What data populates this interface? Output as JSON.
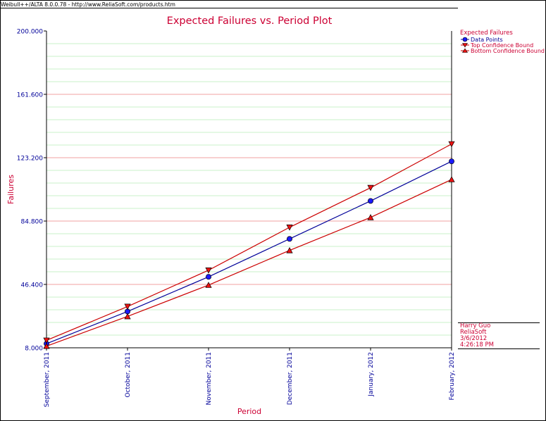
{
  "app_header": "Weibull++/ALTA 8.0.0.78 - http://www.ReliaSoft.com/products.htm",
  "colors": {
    "title": "#cc0033",
    "axis_text": "#000099",
    "data_line": "#000099",
    "bound_line": "#cc0000",
    "major_grid": "#f0a0a0",
    "minor_grid": "#c8f0c8"
  },
  "chart_data": {
    "type": "line",
    "title": "Expected Failures vs. Period Plot",
    "xlabel": "Period",
    "ylabel": "Failures",
    "categories": [
      "September, 2011",
      "October, 2011",
      "November, 2011",
      "December, 2011",
      "January, 2012",
      "February, 2012"
    ],
    "ylim": [
      8.0,
      200.0
    ],
    "y_ticks": [
      "8.000",
      "46.400",
      "84.800",
      "123.200",
      "161.600",
      "200.000"
    ],
    "y_minor_step": 7.68,
    "grid": true,
    "legend_title": "Expected Failures",
    "legend_position": "right",
    "series": [
      {
        "name": "Data Points",
        "values": [
          10.5,
          30,
          51,
          74,
          97,
          121
        ],
        "color": "#000099",
        "marker": "circle",
        "marker_fill": "#1a1aff"
      },
      {
        "name": "Top Confidence Bound",
        "values": [
          12.5,
          33,
          55,
          81,
          105,
          131.5
        ],
        "color": "#cc0000",
        "marker": "triangle-down",
        "marker_fill": "#ee1111"
      },
      {
        "name": "Bottom Confidence Bound",
        "values": [
          9,
          27,
          46,
          67,
          87,
          110
        ],
        "color": "#cc0000",
        "marker": "triangle-up",
        "marker_fill": "#ee1111"
      }
    ]
  },
  "info": {
    "user": "Harry Guo",
    "company": "ReliaSoft",
    "date": "3/6/2012",
    "time": "4:26:18 PM"
  }
}
